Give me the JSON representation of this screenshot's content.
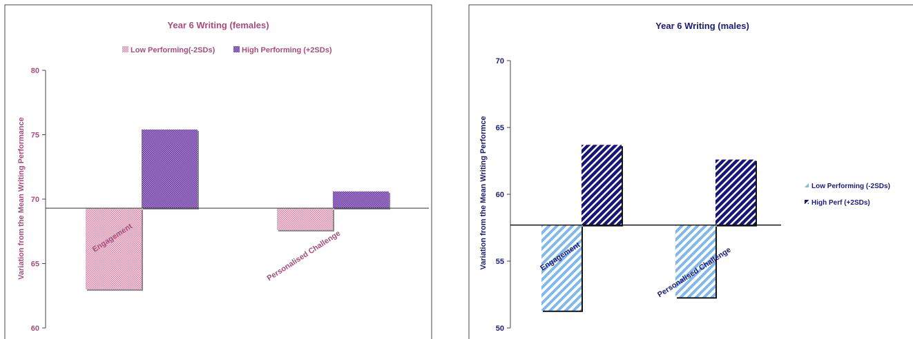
{
  "colors": {
    "female_text": "#a64d79",
    "female_low": "#e8b7c9",
    "female_high": "#8a5cb6",
    "male_text": "#1a1a7a",
    "male_low": "#7fb8ec",
    "male_high": "#15157a",
    "frame": "#444444"
  },
  "chart_data": [
    {
      "type": "bar",
      "title": "Year 6 Writing (females)",
      "ylabel": "Variation from the Mean Writing Performance",
      "xlabel": "",
      "ylim": [
        60,
        80
      ],
      "yticks": [
        60,
        65,
        70,
        75,
        80
      ],
      "baseline": 69.3,
      "categories": [
        "Engagement",
        "Personalised Challenge"
      ],
      "series": [
        {
          "name": "Low Performing(-2SDs)",
          "values": [
            63.0,
            67.6
          ]
        },
        {
          "name": "High Performing (+2SDs)",
          "values": [
            75.4,
            70.6
          ]
        }
      ],
      "legend": "top",
      "grid": false
    },
    {
      "type": "bar",
      "title": "Year 6 Writing (males)",
      "ylabel": "Variation from the Mean Writing Performce",
      "xlabel": "",
      "ylim": [
        50,
        70
      ],
      "yticks": [
        50,
        55,
        60,
        65,
        70
      ],
      "baseline": 57.7,
      "categories": [
        "Engagement",
        "Personalised Challenge"
      ],
      "series": [
        {
          "name": "Low  Performing (-2SDs)",
          "values": [
            51.3,
            52.3
          ]
        },
        {
          "name": "High Perf (+2SDs)",
          "values": [
            63.7,
            62.6
          ]
        }
      ],
      "legend": "right",
      "grid": false
    }
  ]
}
